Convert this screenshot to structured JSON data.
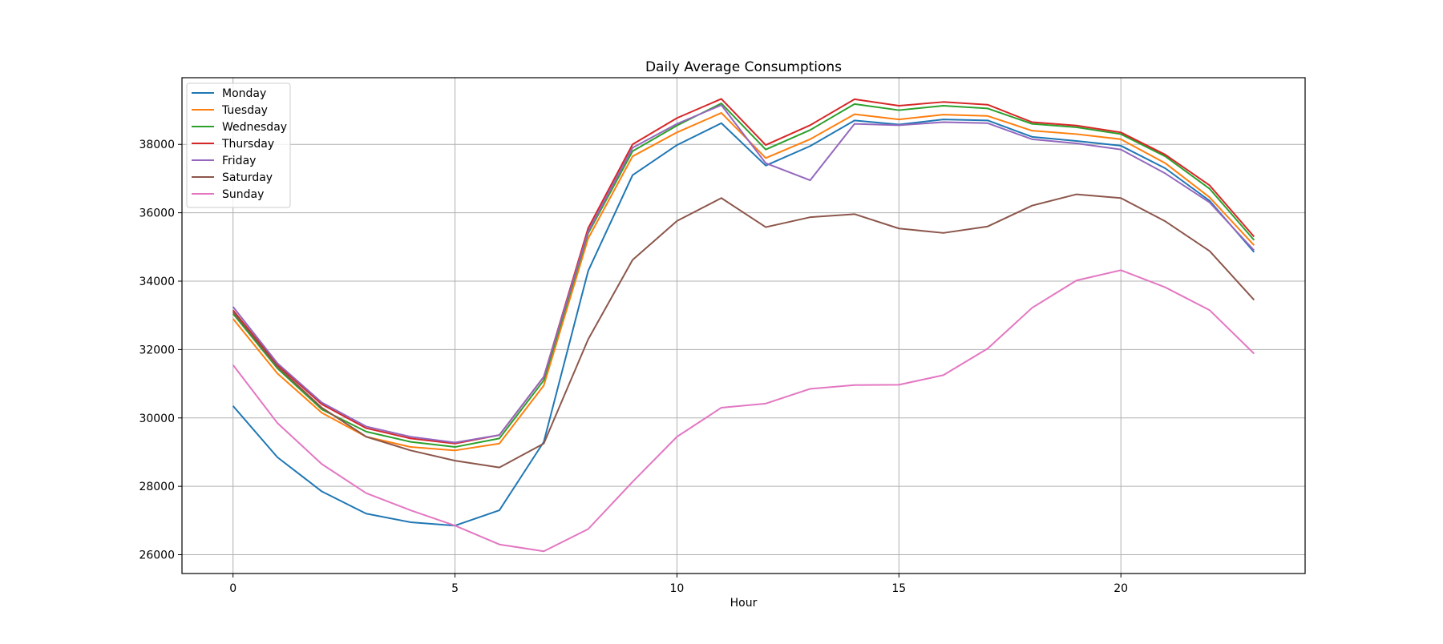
{
  "chart_data": {
    "type": "line",
    "title": "Daily Average Consumptions",
    "xlabel": "Hour",
    "ylabel": "",
    "xlim": [
      -1.15,
      24.15
    ],
    "ylim": [
      25450,
      39950
    ],
    "xticks": [
      0,
      5,
      10,
      15,
      20
    ],
    "yticks": [
      26000,
      28000,
      30000,
      32000,
      34000,
      36000,
      38000
    ],
    "grid": true,
    "legend_position": "top-left",
    "x": [
      0,
      1,
      2,
      3,
      4,
      5,
      6,
      7,
      8,
      9,
      10,
      11,
      12,
      13,
      14,
      15,
      16,
      17,
      18,
      19,
      20,
      21,
      22,
      23
    ],
    "series": [
      {
        "name": "Monday",
        "color": "#1f77b4",
        "values": [
          30350,
          28850,
          27850,
          27200,
          26950,
          26850,
          27300,
          29300,
          34300,
          37100,
          37980,
          38620,
          37380,
          37950,
          38700,
          38580,
          38730,
          38700,
          38220,
          38100,
          37960,
          37300,
          36350,
          34850
        ]
      },
      {
        "name": "Tuesday",
        "color": "#ff7f0e",
        "values": [
          32900,
          31300,
          30150,
          29450,
          29150,
          29050,
          29250,
          30950,
          35250,
          37650,
          38350,
          38920,
          37600,
          38150,
          38880,
          38730,
          38870,
          38830,
          38400,
          38300,
          38150,
          37450,
          36450,
          35050
        ]
      },
      {
        "name": "Wednesday",
        "color": "#2ca02c",
        "values": [
          33050,
          31450,
          30250,
          29600,
          29300,
          29150,
          29400,
          31100,
          35400,
          37800,
          38550,
          39200,
          37850,
          38420,
          39180,
          39000,
          39130,
          39050,
          38600,
          38500,
          38300,
          37650,
          36700,
          35200
        ]
      },
      {
        "name": "Thursday",
        "color": "#d62728",
        "values": [
          33150,
          31550,
          30400,
          29700,
          29400,
          29250,
          29500,
          31200,
          35550,
          38000,
          38770,
          39330,
          37980,
          38560,
          39320,
          39130,
          39240,
          39160,
          38650,
          38550,
          38350,
          37700,
          36800,
          35300
        ]
      },
      {
        "name": "Friday",
        "color": "#9467bd",
        "values": [
          33250,
          31600,
          30450,
          29750,
          29450,
          29280,
          29500,
          31200,
          35450,
          37900,
          38600,
          39150,
          37450,
          36950,
          38600,
          38560,
          38650,
          38620,
          38150,
          38030,
          37850,
          37150,
          36300,
          34900
        ]
      },
      {
        "name": "Saturday",
        "color": "#8c564b",
        "values": [
          33100,
          31500,
          30300,
          29450,
          29050,
          28750,
          28550,
          29250,
          32300,
          34620,
          35760,
          36430,
          35580,
          35870,
          35960,
          35540,
          35410,
          35600,
          36210,
          36540,
          36430,
          35750,
          34880,
          33450
        ]
      },
      {
        "name": "Sunday",
        "color": "#e377c2",
        "values": [
          31550,
          29850,
          28650,
          27800,
          27300,
          26850,
          26300,
          26100,
          26750,
          28130,
          29450,
          30300,
          30420,
          30850,
          30960,
          30970,
          31250,
          32030,
          33220,
          34020,
          34320,
          33820,
          33150,
          31880
        ]
      }
    ]
  }
}
